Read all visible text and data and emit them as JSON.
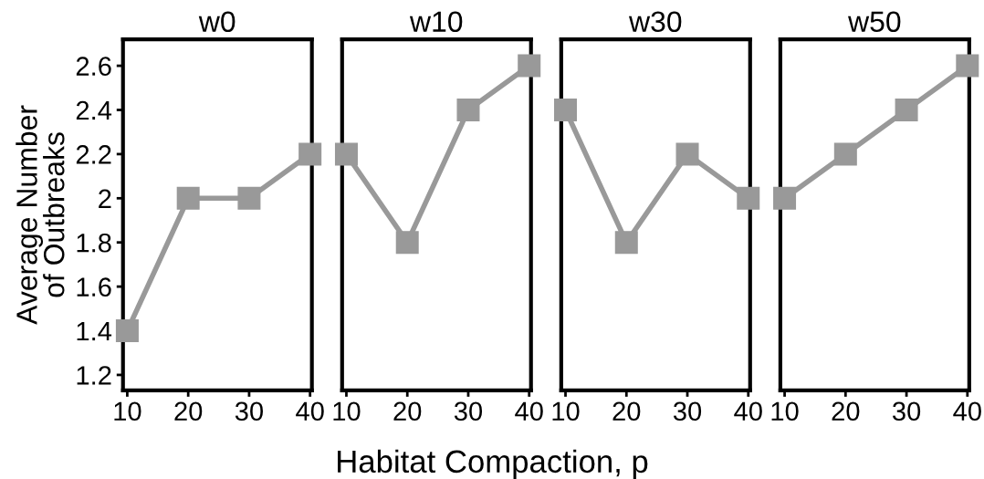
{
  "chart_data": [
    {
      "type": "line",
      "title": "w0",
      "ylabel": "Average Number\nof Outbreaks",
      "xlabel": "Habitat Compaction, p",
      "x": [
        10,
        20,
        30,
        40
      ],
      "series": [
        {
          "color": "#999999",
          "values": [
            1.4,
            2.0,
            2.0,
            2.2
          ]
        }
      ],
      "xlim": [
        9.3,
        40.3
      ],
      "ylim": [
        1.13,
        2.72
      ],
      "xticks": [
        10,
        20,
        30,
        40
      ],
      "yticks": [
        1.2,
        1.4,
        1.6,
        1.8,
        2,
        2.2,
        2.4,
        2.6
      ],
      "marker": "square",
      "line_style": "solid",
      "grid": false,
      "legend": false
    },
    {
      "type": "line",
      "title": "w10",
      "x": [
        10,
        20,
        30,
        40
      ],
      "series": [
        {
          "color": "#999999",
          "values": [
            2.2,
            1.8,
            2.4,
            2.6
          ]
        }
      ],
      "xlim": [
        9.3,
        40.3
      ],
      "ylim": [
        1.13,
        2.72
      ],
      "xticks": [
        10,
        20,
        30,
        40
      ],
      "tick_labels": "x",
      "marker": "square",
      "line_style": "solid",
      "grid": false,
      "legend": false
    },
    {
      "type": "line",
      "title": "w30",
      "x": [
        10,
        20,
        30,
        40
      ],
      "series": [
        {
          "color": "#999999",
          "values": [
            2.4,
            1.8,
            2.2,
            2.0
          ]
        }
      ],
      "xlim": [
        9.3,
        40.3
      ],
      "ylim": [
        1.13,
        2.72
      ],
      "xticks": [
        10,
        20,
        30,
        40
      ],
      "tick_labels": "x",
      "marker": "square",
      "line_style": "solid",
      "grid": false,
      "legend": false
    },
    {
      "type": "line",
      "title": "w50",
      "x": [
        10,
        20,
        30,
        40
      ],
      "series": [
        {
          "color": "#999999",
          "values": [
            2.0,
            2.2,
            2.4,
            2.6
          ]
        }
      ],
      "xlim": [
        9.3,
        40.3
      ],
      "ylim": [
        1.13,
        2.72
      ],
      "xticks": [
        10,
        20,
        30,
        40
      ],
      "tick_labels": "x",
      "marker": "square",
      "line_style": "solid",
      "grid": false,
      "legend": false
    }
  ]
}
